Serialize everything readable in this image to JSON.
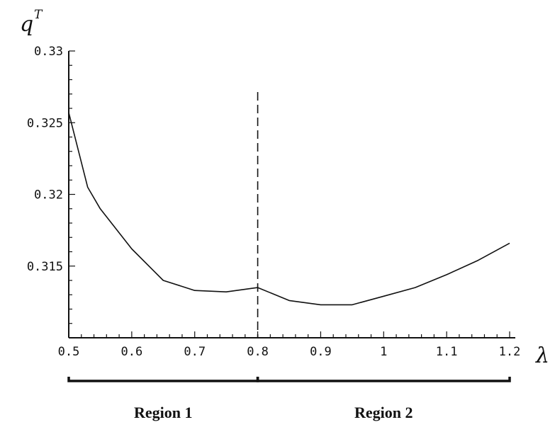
{
  "chart_data": {
    "type": "line",
    "ylabel": "q",
    "ylabel_superscript": "T",
    "xlabel": "λ",
    "xlim": [
      0.5,
      1.2
    ],
    "ylim": [
      0.31,
      0.33
    ],
    "x_ticks": [
      0.5,
      0.6,
      0.7,
      0.8,
      0.9,
      1.0,
      1.1,
      1.2
    ],
    "x_tick_labels": [
      "0.5",
      "0.6",
      "0.7",
      "0.8",
      "0.9",
      "1",
      "1.1",
      "1.2"
    ],
    "y_ticks": [
      0.315,
      0.32,
      0.325,
      0.33
    ],
    "y_tick_labels": [
      "0.315",
      "0.32",
      "0.325",
      "0.33"
    ],
    "grid": false,
    "boundary_x": 0.8,
    "boundary_style": "dashed",
    "series": [
      {
        "x": [
          0.5,
          0.53,
          0.55,
          0.6,
          0.65,
          0.7,
          0.75,
          0.8,
          0.85,
          0.9,
          0.95,
          1.0,
          1.05,
          1.1,
          1.15,
          1.2
        ],
        "y": [
          0.3257,
          0.3205,
          0.319,
          0.3162,
          0.314,
          0.3133,
          0.3132,
          0.3135,
          0.3126,
          0.3123,
          0.3123,
          0.3129,
          0.3135,
          0.3144,
          0.3154,
          0.3166
        ]
      }
    ],
    "regions": [
      {
        "label": "Region 1",
        "from": 0.5,
        "to": 0.8
      },
      {
        "label": "Region 2",
        "from": 0.8,
        "to": 1.2
      }
    ]
  }
}
